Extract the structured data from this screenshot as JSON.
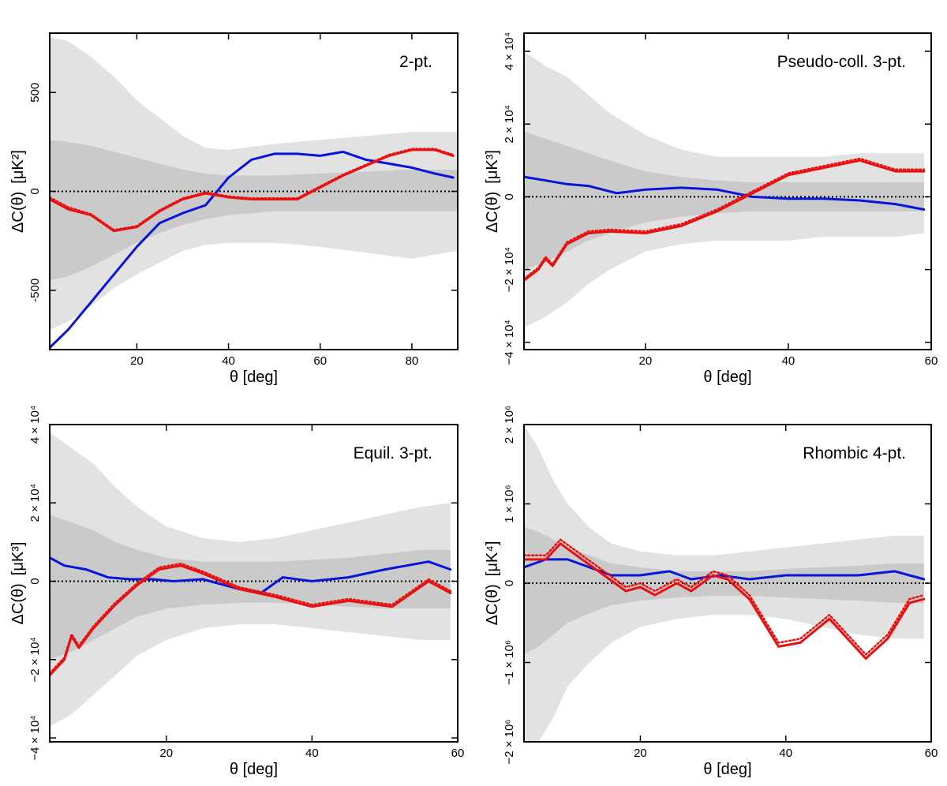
{
  "chart_data": [
    {
      "type": "line",
      "title": "2-pt.",
      "xlabel": "θ [deg]",
      "ylabel": "ΔC(θ)",
      "yunit": "[μK²]",
      "xlim": [
        1,
        90
      ],
      "ylim": [
        -800,
        800
      ],
      "xticks": [
        20,
        40,
        60,
        80
      ],
      "xtick_labels": [
        "20",
        "40",
        "60",
        "80"
      ],
      "yticks": [
        -500,
        0,
        500
      ],
      "ytick_labels": [
        "-500",
        "0",
        "500"
      ],
      "band_outer": {
        "x": [
          1,
          5,
          10,
          15,
          20,
          25,
          30,
          35,
          40,
          50,
          60,
          70,
          80,
          90
        ],
        "upper": [
          780,
          760,
          680,
          580,
          460,
          370,
          280,
          220,
          210,
          240,
          260,
          280,
          300,
          300
        ],
        "lower": [
          -700,
          -660,
          -580,
          -490,
          -420,
          -360,
          -300,
          -270,
          -260,
          -260,
          -280,
          -310,
          -340,
          -300
        ]
      },
      "band_inner": {
        "x": [
          1,
          5,
          10,
          15,
          20,
          25,
          30,
          35,
          40,
          50,
          60,
          70,
          80,
          90
        ],
        "upper": [
          260,
          250,
          230,
          200,
          170,
          140,
          110,
          90,
          80,
          80,
          90,
          100,
          110,
          110
        ],
        "lower": [
          -450,
          -430,
          -380,
          -320,
          -260,
          -210,
          -170,
          -140,
          -120,
          -100,
          -100,
          -100,
          -100,
          -100
        ]
      },
      "series": [
        {
          "name": "blue",
          "color": "#0a14d8",
          "dash": false,
          "x": [
            1,
            5,
            10,
            15,
            20,
            25,
            30,
            35,
            40,
            45,
            50,
            55,
            60,
            65,
            70,
            75,
            80,
            85,
            89
          ],
          "y": [
            -790,
            -700,
            -560,
            -420,
            -280,
            -160,
            -110,
            -70,
            70,
            160,
            190,
            190,
            180,
            200,
            160,
            140,
            120,
            90,
            70
          ]
        },
        {
          "name": "red",
          "color": "#e81010",
          "dash": false,
          "x": [
            1,
            5,
            10,
            15,
            20,
            25,
            30,
            35,
            40,
            45,
            50,
            55,
            60,
            65,
            70,
            75,
            80,
            85,
            89
          ],
          "y": [
            -40,
            -90,
            -120,
            -200,
            -180,
            -100,
            -40,
            -10,
            -30,
            -40,
            -40,
            -40,
            20,
            80,
            130,
            180,
            210,
            210,
            180
          ]
        },
        {
          "name": "red-dotted",
          "color": "#e81010",
          "dash": true,
          "x": [
            1,
            5,
            10,
            15,
            20,
            25,
            30,
            35,
            40,
            45,
            50,
            55,
            60,
            65,
            70,
            75,
            80,
            85,
            89
          ],
          "y": [
            -30,
            -80,
            -115,
            -195,
            -175,
            -95,
            -35,
            -5,
            -25,
            -35,
            -35,
            -35,
            25,
            85,
            135,
            185,
            215,
            215,
            185
          ]
        }
      ]
    },
    {
      "type": "line",
      "title": "Pseudo-coll. 3-pt.",
      "xlabel": "θ [deg]",
      "ylabel": "ΔC(θ)",
      "yunit": "[μK³]",
      "xlim": [
        3,
        60
      ],
      "ylim": [
        -42000,
        45000
      ],
      "xticks": [
        20,
        40,
        60
      ],
      "xtick_labels": [
        "20",
        "40",
        "60"
      ],
      "yticks": [
        -40000,
        -20000,
        0,
        20000,
        40000
      ],
      "ytick_labels": [
        "−4 × 10⁴",
        "−2 × 10⁴",
        "0",
        "2 × 10⁴",
        "4 × 10⁴"
      ],
      "band_outer": {
        "x": [
          3,
          6,
          9,
          12,
          15,
          20,
          25,
          30,
          35,
          40,
          45,
          50,
          55,
          59
        ],
        "upper": [
          40000,
          36000,
          33000,
          28000,
          23000,
          17000,
          13000,
          11000,
          11000,
          11000,
          11000,
          12000,
          12000,
          12000
        ],
        "lower": [
          -36000,
          -33000,
          -29000,
          -24000,
          -20000,
          -15000,
          -13000,
          -12000,
          -12000,
          -12000,
          -11000,
          -11000,
          -11000,
          -10000
        ]
      },
      "band_inner": {
        "x": [
          3,
          6,
          9,
          12,
          15,
          20,
          25,
          30,
          35,
          40,
          45,
          50,
          55,
          59
        ],
        "upper": [
          18000,
          16000,
          14000,
          12000,
          10000,
          7000,
          5500,
          4500,
          4000,
          4000,
          4000,
          4000,
          4000,
          4000
        ],
        "lower": [
          -20000,
          -18000,
          -15000,
          -12000,
          -10000,
          -7000,
          -5500,
          -4500,
          -4000,
          -4000,
          -4000,
          -4000,
          -4000,
          -4000
        ]
      },
      "series": [
        {
          "name": "blue",
          "color": "#0a14d8",
          "dash": false,
          "x": [
            3,
            6,
            9,
            12,
            16,
            20,
            25,
            30,
            35,
            40,
            45,
            50,
            55,
            59
          ],
          "y": [
            5500,
            4500,
            3500,
            3000,
            1000,
            2000,
            2500,
            2000,
            0,
            -500,
            -500,
            -1000,
            -2000,
            -3500
          ]
        },
        {
          "name": "red",
          "color": "#e81010",
          "dash": false,
          "x": [
            3,
            5,
            6,
            7,
            9,
            12,
            15,
            20,
            25,
            30,
            35,
            40,
            45,
            50,
            55,
            59
          ],
          "y": [
            -23000,
            -20000,
            -17000,
            -19000,
            -13000,
            -10000,
            -9500,
            -10000,
            -8000,
            -4000,
            1000,
            6000,
            8000,
            10000,
            7000,
            7000
          ]
        },
        {
          "name": "red-dotted",
          "color": "#e81010",
          "dash": true,
          "x": [
            3,
            5,
            6,
            7,
            9,
            12,
            15,
            20,
            25,
            30,
            35,
            40,
            45,
            50,
            55,
            59
          ],
          "y": [
            -22500,
            -19500,
            -16500,
            -18500,
            -12500,
            -9500,
            -9000,
            -9500,
            -7500,
            -3500,
            1500,
            6500,
            8500,
            10500,
            7500,
            7500
          ]
        }
      ]
    },
    {
      "type": "line",
      "title": "Equil. 3-pt.",
      "xlabel": "θ [deg]",
      "ylabel": "ΔC(θ)",
      "yunit": "[μK³]",
      "xlim": [
        4,
        60
      ],
      "ylim": [
        -41000,
        40000
      ],
      "xticks": [
        20,
        40,
        60
      ],
      "xtick_labels": [
        "20",
        "40",
        "60"
      ],
      "yticks": [
        -40000,
        -20000,
        0,
        20000,
        40000
      ],
      "ytick_labels": [
        "−4 × 10⁴",
        "−2 × 10⁴",
        "0",
        "2 × 10⁴",
        "4 × 10⁴"
      ],
      "band_outer": {
        "x": [
          4,
          7,
          10,
          13,
          16,
          20,
          25,
          30,
          35,
          40,
          45,
          50,
          55,
          59
        ],
        "upper": [
          38000,
          34000,
          30000,
          24000,
          19000,
          14000,
          11000,
          10000,
          11000,
          13000,
          15000,
          17000,
          19000,
          20000
        ],
        "lower": [
          -37000,
          -34000,
          -29000,
          -24000,
          -19000,
          -15000,
          -12000,
          -11000,
          -11000,
          -12000,
          -13000,
          -14000,
          -15000,
          -15000
        ]
      },
      "band_inner": {
        "x": [
          4,
          7,
          10,
          13,
          16,
          20,
          25,
          30,
          35,
          40,
          45,
          50,
          55,
          59
        ],
        "upper": [
          17000,
          15000,
          13000,
          10000,
          8000,
          6000,
          5000,
          5000,
          5000,
          5500,
          6000,
          7000,
          8000,
          8000
        ],
        "lower": [
          -20000,
          -18000,
          -15000,
          -12000,
          -9000,
          -7000,
          -6000,
          -5500,
          -5500,
          -6000,
          -6500,
          -7000,
          -7000,
          -7000
        ]
      },
      "series": [
        {
          "name": "blue",
          "color": "#0a14d8",
          "dash": false,
          "x": [
            4,
            6,
            9,
            12,
            15,
            18,
            21,
            25,
            30,
            33,
            36,
            40,
            45,
            50,
            56,
            59
          ],
          "y": [
            6000,
            4000,
            3000,
            1000,
            500,
            500,
            0,
            500,
            -2000,
            -3000,
            1000,
            0,
            1000,
            3000,
            5000,
            3000
          ]
        },
        {
          "name": "red",
          "color": "#e81010",
          "dash": false,
          "x": [
            4,
            6,
            7,
            8,
            10,
            13,
            16,
            19,
            22,
            25,
            30,
            35,
            40,
            45,
            51,
            56,
            59
          ],
          "y": [
            -24000,
            -20000,
            -14000,
            -17000,
            -12000,
            -6000,
            -1000,
            3000,
            4000,
            2000,
            -2000,
            -4000,
            -6500,
            -5000,
            -6500,
            0,
            -3000
          ]
        },
        {
          "name": "red-dotted",
          "color": "#e81010",
          "dash": true,
          "x": [
            4,
            6,
            7,
            8,
            10,
            13,
            16,
            19,
            22,
            25,
            30,
            35,
            40,
            45,
            51,
            56,
            59
          ],
          "y": [
            -23500,
            -19500,
            -13500,
            -16500,
            -11500,
            -5500,
            -500,
            3500,
            4500,
            2500,
            -1500,
            -3500,
            -6000,
            -4500,
            -6000,
            500,
            -2500
          ]
        }
      ]
    },
    {
      "type": "line",
      "title": "Rhombic 4-pt.",
      "xlabel": "θ [deg]",
      "ylabel": "ΔC(θ)",
      "yunit": "[μK⁴]",
      "xlim": [
        4,
        60
      ],
      "ylim": [
        -2000000,
        2000000
      ],
      "xticks": [
        20,
        40,
        60
      ],
      "xtick_labels": [
        "20",
        "40",
        "60"
      ],
      "yticks": [
        -2000000,
        -1000000,
        0,
        1000000,
        2000000
      ],
      "ytick_labels": [
        "−2 × 10⁶",
        "−1 × 10⁶",
        "0",
        "1 × 10⁶",
        "2 × 10⁶"
      ],
      "band_outer": {
        "x": [
          4,
          6,
          8,
          10,
          13,
          16,
          20,
          25,
          30,
          35,
          40,
          45,
          50,
          55,
          59
        ],
        "upper": [
          2000000,
          1700000,
          1300000,
          1000000,
          700000,
          500000,
          400000,
          350000,
          350000,
          400000,
          450000,
          500000,
          550000,
          600000,
          600000
        ],
        "lower": [
          -2000000,
          -2000000,
          -1700000,
          -1300000,
          -1000000,
          -750000,
          -550000,
          -450000,
          -400000,
          -400000,
          -450000,
          -550000,
          -650000,
          -700000,
          -700000
        ]
      },
      "band_inner": {
        "x": [
          4,
          6,
          8,
          10,
          13,
          16,
          20,
          25,
          30,
          35,
          40,
          45,
          50,
          55,
          59
        ],
        "upper": [
          700000,
          650000,
          550000,
          450000,
          350000,
          250000,
          200000,
          150000,
          150000,
          150000,
          180000,
          200000,
          220000,
          250000,
          250000
        ],
        "lower": [
          -900000,
          -800000,
          -650000,
          -500000,
          -380000,
          -280000,
          -220000,
          -180000,
          -160000,
          -160000,
          -180000,
          -200000,
          -220000,
          -250000,
          -250000
        ]
      },
      "series": [
        {
          "name": "blue",
          "color": "#0a14d8",
          "dash": false,
          "x": [
            4,
            7,
            10,
            13,
            16,
            20,
            24,
            27,
            31,
            35,
            40,
            45,
            50,
            55,
            59
          ],
          "y": [
            200000,
            300000,
            300000,
            200000,
            100000,
            100000,
            150000,
            50000,
            100000,
            50000,
            100000,
            100000,
            100000,
            150000,
            50000
          ]
        },
        {
          "name": "red",
          "color": "#e81010",
          "dash": false,
          "x": [
            4,
            7,
            9,
            12,
            15,
            18,
            20,
            22,
            25,
            27,
            30,
            32,
            35,
            39,
            42,
            46,
            51,
            54,
            57,
            59
          ],
          "y": [
            300000,
            300000,
            500000,
            300000,
            100000,
            -100000,
            -50000,
            -150000,
            0,
            -100000,
            100000,
            50000,
            -200000,
            -800000,
            -750000,
            -450000,
            -950000,
            -700000,
            -250000,
            -200000
          ]
        },
        {
          "name": "red-dotted",
          "color": "#e81010",
          "dash": true,
          "x": [
            4,
            7,
            9,
            12,
            15,
            18,
            20,
            22,
            25,
            27,
            30,
            32,
            35,
            39,
            42,
            46,
            51,
            54,
            57,
            59
          ],
          "y": [
            350000,
            350000,
            550000,
            350000,
            150000,
            -50000,
            0,
            -100000,
            50000,
            -50000,
            150000,
            100000,
            -150000,
            -750000,
            -700000,
            -400000,
            -900000,
            -650000,
            -200000,
            -150000
          ]
        }
      ]
    }
  ]
}
